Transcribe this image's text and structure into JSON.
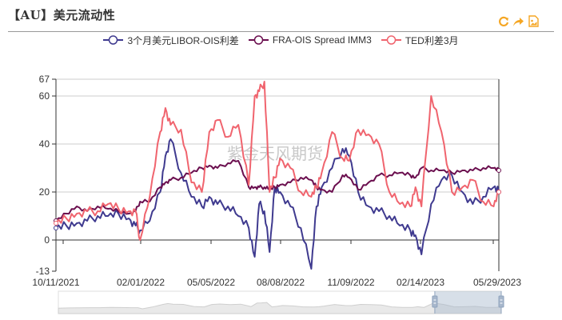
{
  "header": {
    "title": "【AU】美元流动性",
    "toolbar": [
      {
        "icon": "refresh-icon",
        "label": "刷新"
      },
      {
        "icon": "share-icon",
        "label": "分享"
      },
      {
        "icon": "save-image-icon",
        "label": "保存为图片"
      }
    ]
  },
  "legend": [
    {
      "label": "3个月美元LIBOR-OIS利差",
      "color": "#3f3a8f"
    },
    {
      "label": "FRA-OIS Spread IMM3",
      "color": "#6b0f4f"
    },
    {
      "label": "TED利差3月",
      "color": "#f0646e"
    }
  ],
  "watermark": "紫金天风期货",
  "dataZoom": {
    "start_pct": 85,
    "end_pct": 100
  },
  "chart_data": {
    "type": "line",
    "title": "【AU】美元流动性",
    "xlabel": "",
    "ylabel": "",
    "ylim": [
      -13,
      67
    ],
    "yticks": [
      -13,
      0,
      20,
      40,
      60,
      67
    ],
    "xticks": [
      "10/11/2021",
      "02/01/2022",
      "05/05/2022",
      "08/08/2022",
      "11/09/2022",
      "02/14/2023",
      "05/29/2023"
    ],
    "grid": true,
    "legend_position": "top",
    "x": [
      "2021-10-11",
      "2021-10-25",
      "2021-11-08",
      "2021-11-22",
      "2021-12-06",
      "2021-12-20",
      "2022-01-03",
      "2022-01-17",
      "2022-01-26",
      "2022-02-01",
      "2022-02-14",
      "2022-02-28",
      "2022-03-07",
      "2022-03-14",
      "2022-03-28",
      "2022-04-11",
      "2022-04-25",
      "2022-05-05",
      "2022-05-16",
      "2022-05-30",
      "2022-06-13",
      "2022-06-27",
      "2022-07-05",
      "2022-07-11",
      "2022-07-18",
      "2022-07-25",
      "2022-08-01",
      "2022-08-08",
      "2022-08-22",
      "2022-09-05",
      "2022-09-19",
      "2022-09-26",
      "2022-10-03",
      "2022-10-17",
      "2022-10-31",
      "2022-11-09",
      "2022-11-21",
      "2022-12-05",
      "2022-12-19",
      "2023-01-02",
      "2023-01-16",
      "2023-01-30",
      "2023-02-06",
      "2023-02-14",
      "2023-02-27",
      "2023-03-13",
      "2023-03-27",
      "2023-04-10",
      "2023-04-24",
      "2023-05-08",
      "2023-05-22",
      "2023-05-29"
    ],
    "series": [
      {
        "name": "3个月美元LIBOR-OIS利差",
        "values": [
          5,
          6,
          7,
          8,
          10,
          10,
          11,
          9,
          6,
          4,
          8,
          20,
          35,
          42,
          28,
          18,
          14,
          18,
          15,
          14,
          10,
          5,
          -7,
          15,
          12,
          -5,
          22,
          20,
          14,
          5,
          -12,
          14,
          22,
          30,
          38,
          35,
          20,
          14,
          12,
          10,
          6,
          4,
          2,
          -6,
          15,
          25,
          27,
          20,
          15,
          18,
          22,
          20
        ]
      },
      {
        "name": "FRA-OIS Spread IMM3",
        "values": [
          8,
          11,
          14,
          12,
          14,
          13,
          12,
          11,
          12,
          16,
          16,
          22,
          24,
          25,
          26,
          28,
          30,
          31,
          30,
          32,
          33,
          22,
          22,
          22,
          22,
          21,
          22,
          23,
          24,
          26,
          25,
          22,
          21,
          20,
          27,
          26,
          21,
          24,
          27,
          27,
          28,
          27,
          26,
          30,
          29,
          29,
          28,
          29,
          29,
          30,
          30,
          29
        ]
      },
      {
        "name": "TED利差3月",
        "values": [
          7,
          9,
          11,
          12,
          12,
          15,
          13,
          12,
          12,
          0,
          18,
          45,
          55,
          48,
          46,
          24,
          20,
          45,
          50,
          43,
          48,
          23,
          60,
          62,
          66,
          20,
          26,
          34,
          30,
          20,
          18,
          22,
          28,
          45,
          34,
          33,
          46,
          44,
          40,
          20,
          15,
          14,
          22,
          14,
          60,
          45,
          20,
          22,
          25,
          16,
          14,
          20
        ]
      }
    ]
  }
}
